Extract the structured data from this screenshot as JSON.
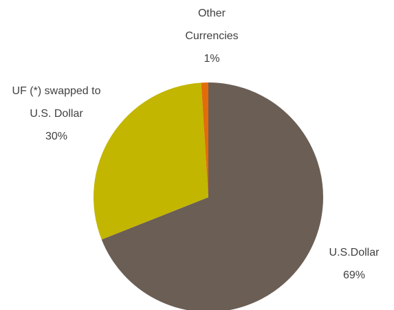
{
  "chart_data": {
    "type": "pie",
    "categories": [
      "U.S.Dollar",
      "UF (*) swapped to U.S. Dollar",
      "Other Currencies"
    ],
    "values": [
      69,
      30,
      1
    ],
    "value_labels": [
      "69%",
      "30%",
      "1%"
    ],
    "colors": [
      "#6b5e55",
      "#c2b600",
      "#e36c0a"
    ]
  }
}
